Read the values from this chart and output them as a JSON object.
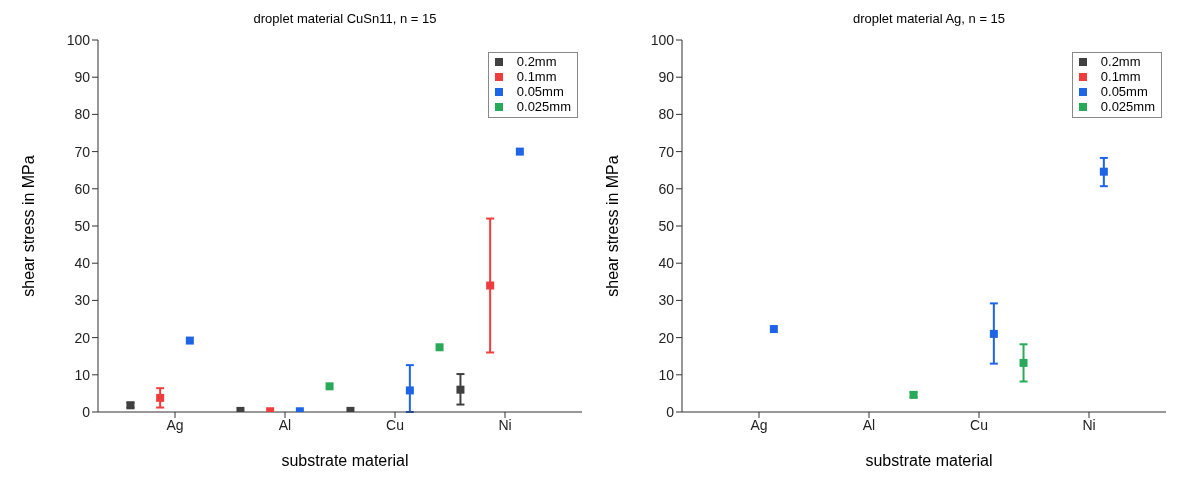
{
  "chart_data": [
    {
      "type": "scatter",
      "title": "droplet material CuSn11, n = 15",
      "xlabel": "substrate material",
      "ylabel": "shear stress in MPa",
      "categories": [
        "Ag",
        "Al",
        "Cu",
        "Ni"
      ],
      "ylim": [
        0,
        100
      ],
      "yticks": [
        0,
        10,
        20,
        30,
        40,
        50,
        60,
        70,
        80,
        90,
        100
      ],
      "grid": false,
      "legend": "top right",
      "marker": "square",
      "series": [
        {
          "name": "0.2mm",
          "color": "#404040",
          "values": [
            1.8,
            0.3,
            0.3,
            6
          ],
          "errors": [
            [
              1.2,
              2.5
            ],
            null,
            null,
            [
              2,
              10.2
            ]
          ]
        },
        {
          "name": "0.1mm",
          "color": "#f03c3c",
          "values": [
            3.8,
            0.2,
            null,
            34
          ],
          "errors": [
            [
              1.2,
              6.4
            ],
            null,
            null,
            [
              16,
              52
            ]
          ]
        },
        {
          "name": "0.05mm",
          "color": "#1e64e6",
          "values": [
            19.2,
            0.2,
            5.8,
            70
          ],
          "errors": [
            null,
            null,
            [
              0,
              12.6
            ],
            null
          ]
        },
        {
          "name": "0.025mm",
          "color": "#28aa5a",
          "values": [
            null,
            6.9,
            17.4,
            null
          ],
          "errors": [
            null,
            null,
            null,
            null
          ]
        }
      ]
    },
    {
      "type": "scatter",
      "title": "droplet material Ag, n = 15",
      "xlabel": "substrate material",
      "ylabel": "shear stress in MPa",
      "categories": [
        "Ag",
        "Al",
        "Cu",
        "Ni"
      ],
      "ylim": [
        0,
        100
      ],
      "yticks": [
        0,
        10,
        20,
        30,
        40,
        50,
        60,
        70,
        80,
        90,
        100
      ],
      "grid": false,
      "legend": "top right",
      "marker": "square",
      "series": [
        {
          "name": "0.2mm",
          "color": "#404040",
          "values": [
            null,
            null,
            null,
            null
          ],
          "errors": [
            null,
            null,
            null,
            null
          ]
        },
        {
          "name": "0.1mm",
          "color": "#f03c3c",
          "values": [
            null,
            null,
            null,
            null
          ],
          "errors": [
            null,
            null,
            null,
            null
          ]
        },
        {
          "name": "0.05mm",
          "color": "#1e64e6",
          "values": [
            22.3,
            null,
            21,
            64.6
          ],
          "errors": [
            null,
            null,
            [
              13,
              29.2
            ],
            [
              60.7,
              68.3
            ]
          ]
        },
        {
          "name": "0.025mm",
          "color": "#28aa5a",
          "values": [
            null,
            4.6,
            13.2,
            null
          ],
          "errors": [
            null,
            [
              4,
              5.3
            ],
            [
              8.2,
              18.2
            ],
            null
          ]
        }
      ]
    }
  ]
}
